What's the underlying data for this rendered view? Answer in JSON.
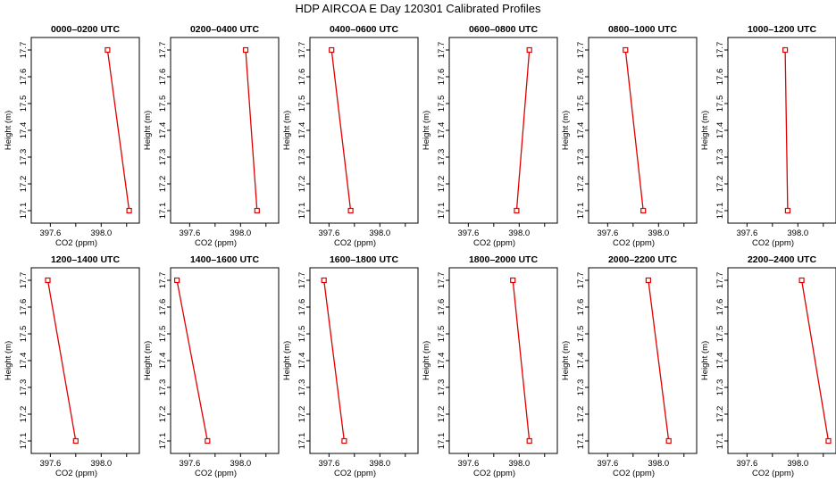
{
  "page_title": "HDP AIRCOA E  Day 120301  Calibrated Profiles",
  "chart_data": [
    {
      "type": "line",
      "title": "0000–0200 UTC",
      "xlabel": "CO2 (ppm)",
      "ylabel": "Height (m)",
      "xlim": [
        397.45,
        398.3
      ],
      "ylim": [
        17.08,
        17.72
      ],
      "xticks": [
        "397.6",
        "398.0"
      ],
      "yticks": [
        "17.1",
        "17.2",
        "17.3",
        "17.4",
        "17.5",
        "17.6",
        "17.7"
      ],
      "points": [
        {
          "x": 398.22,
          "y": 17.1
        },
        {
          "x": 398.05,
          "y": 17.7
        }
      ]
    },
    {
      "type": "line",
      "title": "0200–0400 UTC",
      "xlabel": "CO2 (ppm)",
      "ylabel": "Height (m)",
      "xlim": [
        397.45,
        398.3
      ],
      "ylim": [
        17.08,
        17.72
      ],
      "xticks": [
        "397.6",
        "398.0"
      ],
      "yticks": [
        "17.1",
        "17.2",
        "17.3",
        "17.4",
        "17.5",
        "17.6",
        "17.7"
      ],
      "points": [
        {
          "x": 398.13,
          "y": 17.1
        },
        {
          "x": 398.04,
          "y": 17.7
        }
      ]
    },
    {
      "type": "line",
      "title": "0400–0600 UTC",
      "xlabel": "CO2 (ppm)",
      "ylabel": "Height (m)",
      "xlim": [
        397.45,
        398.3
      ],
      "ylim": [
        17.08,
        17.72
      ],
      "xticks": [
        "397.6",
        "398.0"
      ],
      "yticks": [
        "17.1",
        "17.2",
        "17.3",
        "17.4",
        "17.5",
        "17.6",
        "17.7"
      ],
      "points": [
        {
          "x": 397.77,
          "y": 17.1
        },
        {
          "x": 397.62,
          "y": 17.7
        }
      ]
    },
    {
      "type": "line",
      "title": "0600–0800 UTC",
      "xlabel": "CO2 (ppm)",
      "ylabel": "Height (m)",
      "xlim": [
        397.45,
        398.3
      ],
      "ylim": [
        17.08,
        17.72
      ],
      "xticks": [
        "397.6",
        "398.0"
      ],
      "yticks": [
        "17.1",
        "17.2",
        "17.3",
        "17.4",
        "17.5",
        "17.6",
        "17.7"
      ],
      "points": [
        {
          "x": 397.98,
          "y": 17.1
        },
        {
          "x": 398.08,
          "y": 17.7
        }
      ]
    },
    {
      "type": "line",
      "title": "0800–1000 UTC",
      "xlabel": "CO2 (ppm)",
      "ylabel": "Height (m)",
      "xlim": [
        397.45,
        398.3
      ],
      "ylim": [
        17.08,
        17.72
      ],
      "xticks": [
        "397.6",
        "398.0"
      ],
      "yticks": [
        "17.1",
        "17.2",
        "17.3",
        "17.4",
        "17.5",
        "17.6",
        "17.7"
      ],
      "points": [
        {
          "x": 397.88,
          "y": 17.1
        },
        {
          "x": 397.74,
          "y": 17.7
        }
      ]
    },
    {
      "type": "line",
      "title": "1000–1200 UTC",
      "xlabel": "CO2 (ppm)",
      "ylabel": "Height (m)",
      "xlim": [
        397.45,
        398.3
      ],
      "ylim": [
        17.08,
        17.72
      ],
      "xticks": [
        "397.6",
        "398.0"
      ],
      "yticks": [
        "17.1",
        "17.2",
        "17.3",
        "17.4",
        "17.5",
        "17.6",
        "17.7"
      ],
      "points": [
        {
          "x": 397.92,
          "y": 17.1
        },
        {
          "x": 397.9,
          "y": 17.7
        }
      ]
    },
    {
      "type": "line",
      "title": "1200–1400 UTC",
      "xlabel": "CO2 (ppm)",
      "ylabel": "Height (m)",
      "xlim": [
        397.45,
        398.3
      ],
      "ylim": [
        17.08,
        17.72
      ],
      "xticks": [
        "397.6",
        "398.0"
      ],
      "yticks": [
        "17.1",
        "17.2",
        "17.3",
        "17.4",
        "17.5",
        "17.6",
        "17.7"
      ],
      "points": [
        {
          "x": 397.8,
          "y": 17.1
        },
        {
          "x": 397.58,
          "y": 17.7
        }
      ]
    },
    {
      "type": "line",
      "title": "1400–1600 UTC",
      "xlabel": "CO2 (ppm)",
      "ylabel": "Height (m)",
      "xlim": [
        397.45,
        398.3
      ],
      "ylim": [
        17.08,
        17.72
      ],
      "xticks": [
        "397.6",
        "398.0"
      ],
      "yticks": [
        "17.1",
        "17.2",
        "17.3",
        "17.4",
        "17.5",
        "17.6",
        "17.7"
      ],
      "points": [
        {
          "x": 397.74,
          "y": 17.1
        },
        {
          "x": 397.5,
          "y": 17.7
        }
      ]
    },
    {
      "type": "line",
      "title": "1600–1800 UTC",
      "xlabel": "CO2 (ppm)",
      "ylabel": "Height (m)",
      "xlim": [
        397.45,
        398.3
      ],
      "ylim": [
        17.08,
        17.72
      ],
      "xticks": [
        "397.6",
        "398.0"
      ],
      "yticks": [
        "17.1",
        "17.2",
        "17.3",
        "17.4",
        "17.5",
        "17.6",
        "17.7"
      ],
      "points": [
        {
          "x": 397.72,
          "y": 17.1
        },
        {
          "x": 397.56,
          "y": 17.7
        }
      ]
    },
    {
      "type": "line",
      "title": "1800–2000 UTC",
      "xlabel": "CO2 (ppm)",
      "ylabel": "Height (m)",
      "xlim": [
        397.45,
        398.3
      ],
      "ylim": [
        17.08,
        17.72
      ],
      "xticks": [
        "397.6",
        "398.0"
      ],
      "yticks": [
        "17.1",
        "17.2",
        "17.3",
        "17.4",
        "17.5",
        "17.6",
        "17.7"
      ],
      "points": [
        {
          "x": 398.08,
          "y": 17.1
        },
        {
          "x": 397.95,
          "y": 17.7
        }
      ]
    },
    {
      "type": "line",
      "title": "2000–2200 UTC",
      "xlabel": "CO2 (ppm)",
      "ylabel": "Height (m)",
      "xlim": [
        397.45,
        398.3
      ],
      "ylim": [
        17.08,
        17.72
      ],
      "xticks": [
        "397.6",
        "398.0"
      ],
      "yticks": [
        "17.1",
        "17.2",
        "17.3",
        "17.4",
        "17.5",
        "17.6",
        "17.7"
      ],
      "points": [
        {
          "x": 398.08,
          "y": 17.1
        },
        {
          "x": 397.92,
          "y": 17.7
        }
      ]
    },
    {
      "type": "line",
      "title": "2200–2400 UTC",
      "xlabel": "CO2 (ppm)",
      "ylabel": "Height (m)",
      "xlim": [
        397.45,
        398.3
      ],
      "ylim": [
        17.08,
        17.72
      ],
      "xticks": [
        "397.6",
        "398.0"
      ],
      "yticks": [
        "17.1",
        "17.2",
        "17.3",
        "17.4",
        "17.5",
        "17.6",
        "17.7"
      ],
      "points": [
        {
          "x": 398.24,
          "y": 17.1
        },
        {
          "x": 398.03,
          "y": 17.7
        }
      ]
    }
  ],
  "colors": {
    "line": "#e00000",
    "frame": "#000000"
  }
}
